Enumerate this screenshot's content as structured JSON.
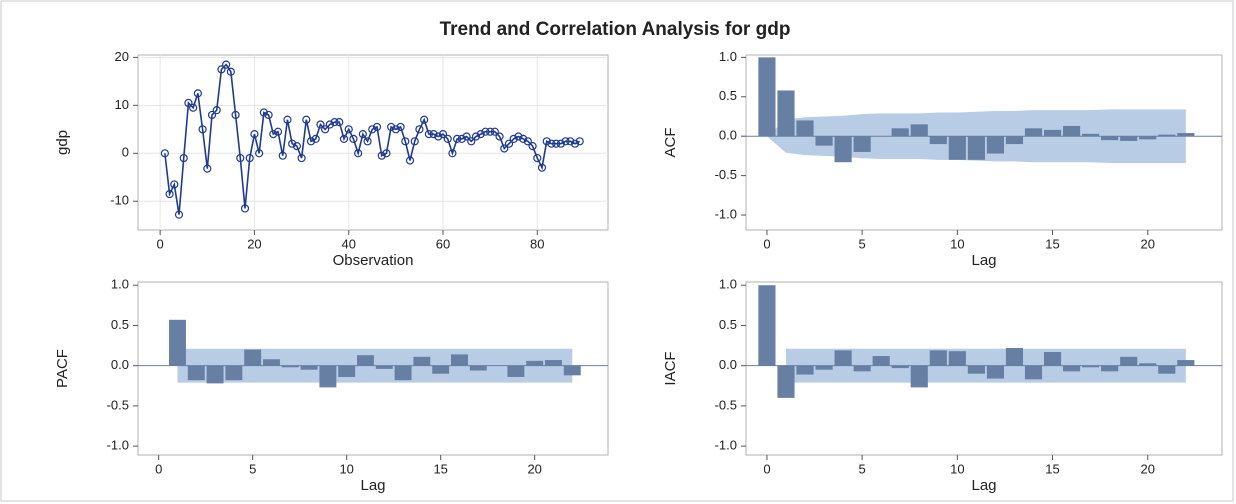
{
  "title": "Trend and Correlation Analysis for gdp",
  "chart_data": [
    {
      "type": "line",
      "ylabel": "gdp",
      "xlabel": "Observation",
      "color": "#1f3a93",
      "marker": "circle",
      "grid": true,
      "x": [
        1,
        2,
        3,
        4,
        5,
        6,
        7,
        8,
        9,
        10,
        11,
        12,
        13,
        14,
        15,
        16,
        17,
        18,
        19,
        20,
        21,
        22,
        23,
        24,
        25,
        26,
        27,
        28,
        29,
        30,
        31,
        32,
        33,
        34,
        35,
        36,
        37,
        38,
        39,
        40,
        41,
        42,
        43,
        44,
        45,
        46,
        47,
        48,
        49,
        50,
        51,
        52,
        53,
        54,
        55,
        56,
        57,
        58,
        59,
        60,
        61,
        62,
        63,
        64,
        65,
        66,
        67,
        68,
        69,
        70,
        71,
        72,
        73,
        74,
        75,
        76,
        77,
        78,
        79,
        80,
        81,
        82,
        83,
        84,
        85,
        86,
        87,
        88,
        89
      ],
      "values": [
        0,
        -8.5,
        -6.5,
        -12.8,
        -1,
        10.5,
        9.5,
        12.5,
        5,
        -3.2,
        8,
        9,
        17.5,
        18.5,
        17,
        8,
        -1,
        -11.5,
        -1,
        4,
        0,
        8.5,
        8,
        4,
        4.5,
        -0.5,
        7,
        2,
        1.5,
        -1,
        7,
        2.5,
        3,
        6,
        5,
        6,
        6.5,
        6.5,
        3,
        5,
        3,
        0,
        4,
        2.5,
        5,
        5.5,
        -0.5,
        0,
        5.5,
        5,
        5.5,
        2.5,
        -1.5,
        2.5,
        5,
        7,
        4,
        4,
        3.5,
        4,
        3,
        0,
        3,
        3,
        3.5,
        2.5,
        3.5,
        4,
        4.5,
        4.5,
        4.5,
        3.5,
        1,
        2,
        3,
        3.5,
        3,
        2.5,
        1.5,
        -1,
        -3,
        2.5,
        2,
        2,
        2,
        2.5,
        2.5,
        2,
        2.5
      ],
      "xlim": [
        -4.7,
        95
      ],
      "ylim": [
        -16,
        20.5
      ],
      "xticks": [
        0,
        20,
        40,
        60,
        80
      ],
      "yticks": [
        20,
        10,
        0,
        -10
      ]
    },
    {
      "type": "bar",
      "ylabel": "ACF",
      "xlabel": "Lag",
      "color": "#667fa3",
      "band_color": "#b8cce6",
      "grid": false,
      "x": [
        0,
        1,
        2,
        3,
        4,
        5,
        6,
        7,
        8,
        9,
        10,
        11,
        12,
        13,
        14,
        15,
        16,
        17,
        18,
        19,
        20,
        21,
        22
      ],
      "values": [
        1.0,
        0.58,
        0.2,
        -0.12,
        -0.33,
        -0.2,
        0,
        0.1,
        0.15,
        -0.1,
        -0.3,
        -0.3,
        -0.22,
        -0.1,
        0.1,
        0.08,
        0.13,
        0.03,
        -0.05,
        -0.06,
        -0.04,
        0.02,
        0.04
      ],
      "band": [
        0,
        0.21,
        0.24,
        0.25,
        0.26,
        0.28,
        0.29,
        0.29,
        0.29,
        0.3,
        0.3,
        0.31,
        0.32,
        0.32,
        0.33,
        0.33,
        0.33,
        0.33,
        0.34,
        0.34,
        0.34,
        0.34,
        0.34
      ],
      "xlim": [
        -1.1,
        23.9
      ],
      "ylim": [
        -1.19,
        1.03
      ],
      "xticks": [
        0,
        5,
        10,
        15,
        20
      ],
      "yticks": [
        {
          "value": 1,
          "label": "1.0"
        },
        {
          "value": 0.5,
          "label": "0.5"
        },
        {
          "value": 0,
          "label": "0.0"
        },
        {
          "value": -0.5,
          "label": "-0.5"
        },
        {
          "value": -1,
          "label": "-1.0"
        }
      ]
    },
    {
      "type": "bar",
      "ylabel": "PACF",
      "xlabel": "Lag",
      "color": "#667fa3",
      "band_color": "#b8cce6",
      "grid": false,
      "x": [
        1,
        2,
        3,
        4,
        5,
        6,
        7,
        8,
        9,
        10,
        11,
        12,
        13,
        14,
        15,
        16,
        17,
        18,
        19,
        20,
        21,
        22
      ],
      "values": [
        0.57,
        -0.18,
        -0.22,
        -0.18,
        0.2,
        0.08,
        -0.02,
        -0.05,
        -0.27,
        -0.14,
        0.13,
        -0.04,
        -0.18,
        0.11,
        -0.1,
        0.14,
        -0.06,
        0,
        -0.14,
        0.06,
        0.07,
        -0.12
      ],
      "band": [
        0.21,
        0.21,
        0.21,
        0.21,
        0.21,
        0.21,
        0.21,
        0.21,
        0.21,
        0.21,
        0.21,
        0.21,
        0.21,
        0.21,
        0.21,
        0.21,
        0.21,
        0.21,
        0.21,
        0.21,
        0.21,
        0.21
      ],
      "xlim": [
        -1.1,
        23.9
      ],
      "ylim": [
        -1.11,
        1.04
      ],
      "xticks": [
        0,
        5,
        10,
        15,
        20
      ],
      "yticks": [
        {
          "value": 1,
          "label": "1.0"
        },
        {
          "value": 0.5,
          "label": "0.5"
        },
        {
          "value": 0,
          "label": "0.0"
        },
        {
          "value": -0.5,
          "label": "-0.5"
        },
        {
          "value": -1,
          "label": "-1.0"
        }
      ]
    },
    {
      "type": "bar",
      "ylabel": "IACF",
      "xlabel": "Lag",
      "color": "#667fa3",
      "band_color": "#b8cce6",
      "grid": false,
      "x": [
        0,
        1,
        2,
        3,
        4,
        5,
        6,
        7,
        8,
        9,
        10,
        11,
        12,
        13,
        14,
        15,
        16,
        17,
        18,
        19,
        20,
        21,
        22
      ],
      "values": [
        1.0,
        -0.4,
        -0.11,
        -0.05,
        0.19,
        -0.07,
        0.12,
        -0.03,
        -0.27,
        0.19,
        0.18,
        -0.1,
        -0.16,
        0.22,
        -0.17,
        0.17,
        -0.07,
        -0.02,
        -0.07,
        0.11,
        0.03,
        -0.1,
        0.07
      ],
      "band": [
        null,
        0.21,
        0.21,
        0.21,
        0.21,
        0.21,
        0.21,
        0.21,
        0.21,
        0.21,
        0.21,
        0.21,
        0.21,
        0.21,
        0.21,
        0.21,
        0.21,
        0.21,
        0.21,
        0.21,
        0.21,
        0.21,
        0.21
      ],
      "xlim": [
        -1.1,
        23.9
      ],
      "ylim": [
        -1.11,
        1.04
      ],
      "xticks": [
        0,
        5,
        10,
        15,
        20
      ],
      "yticks": [
        {
          "value": 1,
          "label": "1.0"
        },
        {
          "value": 0.5,
          "label": "0.5"
        },
        {
          "value": 0,
          "label": "0.0"
        },
        {
          "value": -0.5,
          "label": "-0.5"
        },
        {
          "value": -1,
          "label": "-1.0"
        }
      ]
    }
  ]
}
